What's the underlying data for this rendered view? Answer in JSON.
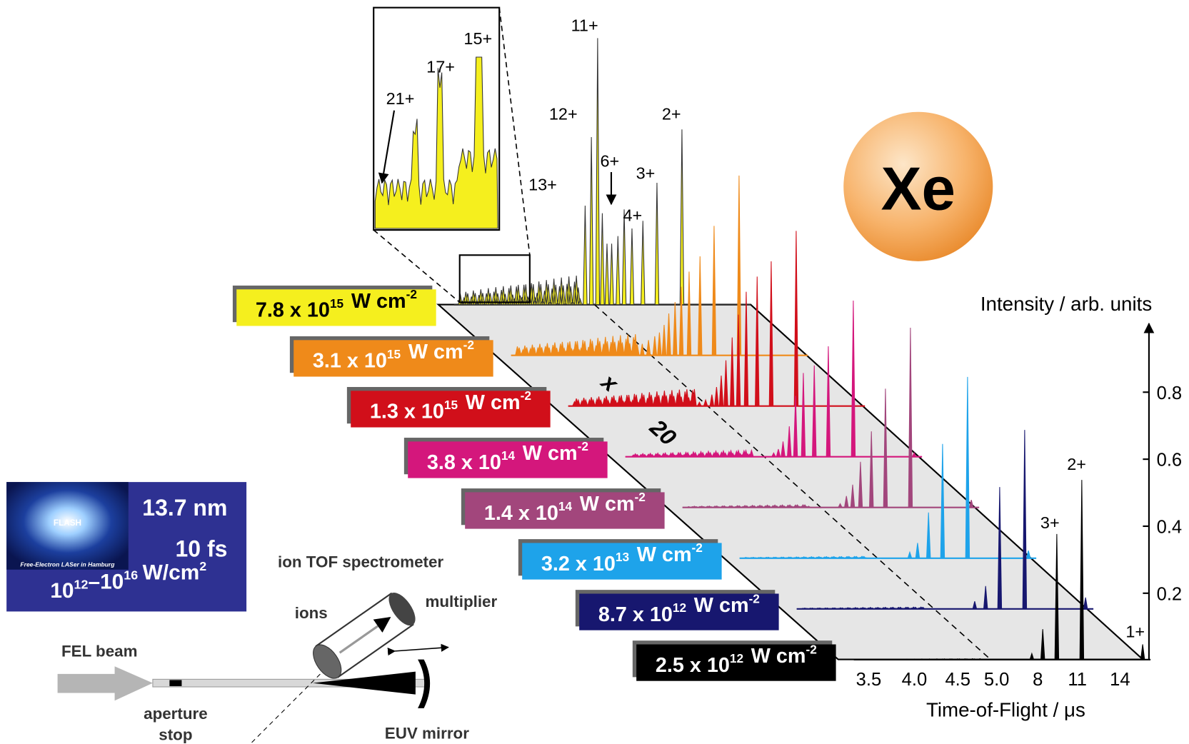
{
  "inset": {
    "peak_labels": [
      "15+",
      "17+",
      "21+"
    ]
  },
  "peak_labels": {
    "top": [
      "11+",
      "12+",
      "13+",
      "6+",
      "3+",
      "4+",
      "2+"
    ],
    "front": [
      "3+",
      "2+",
      "1+"
    ]
  },
  "spectra": [
    {
      "mantissa": "7.8 x 10",
      "exp": "15",
      "unit": "W cm",
      "unit_exp": "-2",
      "color": "#f5ef1e"
    },
    {
      "mantissa": "3.1 x 10",
      "exp": "15",
      "unit": "W cm",
      "unit_exp": "-2",
      "color": "#ef8a1a"
    },
    {
      "mantissa": "1.3 x 10",
      "exp": "15",
      "unit": "W cm",
      "unit_exp": "-2",
      "color": "#d10f1a"
    },
    {
      "mantissa": "3.8 x 10",
      "exp": "14",
      "unit": "W cm",
      "unit_exp": "-2",
      "color": "#d4177c"
    },
    {
      "mantissa": "1.4 x 10",
      "exp": "14",
      "unit": "W cm",
      "unit_exp": "-2",
      "color": "#a2467c"
    },
    {
      "mantissa": "3.2 x 10",
      "exp": "13",
      "unit": "W cm",
      "unit_exp": "-2",
      "color": "#1ea3ea"
    },
    {
      "mantissa": "8.7 x 10",
      "exp": "12",
      "unit": "W cm",
      "unit_exp": "-2",
      "color": "#17176f"
    },
    {
      "mantissa": "2.5 x 10",
      "exp": "12",
      "unit": "W cm",
      "unit_exp": "-2",
      "color": "#000000"
    }
  ],
  "plane_marks": [
    "x",
    "20"
  ],
  "element": "Xe",
  "axis": {
    "title": "Intensity / arb. units",
    "ticks": [
      "0.2",
      "0.4",
      "0.6",
      "0.8"
    ],
    "x_title": "Time-of-Flight / μs",
    "x_ticks": [
      "3.5",
      "4.0",
      "4.5",
      "5.0",
      "8",
      "11",
      "14"
    ]
  },
  "flash": {
    "logo": "FLASH",
    "logo_caption": "Free-Electron LASer in Hamburg",
    "wavelength": "13.7 nm",
    "duration": "10 fs",
    "intensity_range": {
      "base1": "10",
      "exp1": "12",
      "dash": "–",
      "base2": "10",
      "exp2": "16",
      "unit": "W/cm",
      "unit_exp": "2"
    }
  },
  "setup": {
    "spectrometer": "ion TOF spectrometer",
    "ions": "ions",
    "multiplier": "multiplier",
    "beam": "FEL beam",
    "aperture": [
      "aperture",
      "stop"
    ],
    "mirror": "EUV mirror"
  }
}
